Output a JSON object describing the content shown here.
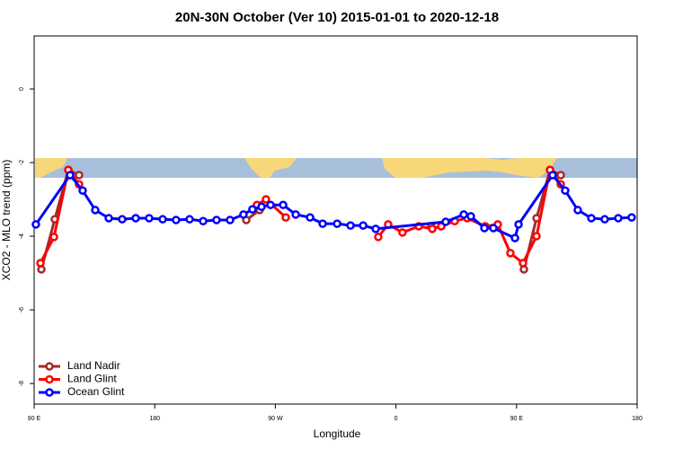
{
  "chart_data": {
    "type": "line",
    "title": "20N-30N October (Ver 10)   2015-01-01 to 2020-12-18",
    "x_label": "Longitude",
    "y_label": "XCO2 - MLO trend (ppm)",
    "xlim": [
      90,
      540
    ],
    "xticks": [
      {
        "value": 90,
        "label": "90 E"
      },
      180,
      {
        "value": 270,
        "label": "90 W"
      },
      {
        "value": 360,
        "label": "0"
      },
      {
        "value": 450,
        "label": "90 E"
      },
      {
        "value": 540,
        "label": "180"
      }
    ],
    "ylim": [
      -8.56,
      1.44
    ],
    "yticks": [
      0,
      -2,
      -4,
      -6,
      -8
    ],
    "legend": "bottom-left",
    "series": [
      {
        "name": "Land Nadir",
        "color": "#a52a2a",
        "x": [
          95.4,
          105.4,
          115.5,
          123.5,
          null,
          248.3,
          258.3,
          null,
          386.4,
          null,
          455.5,
          464.9,
          475,
          483
        ],
        "values": [
          -4.9,
          -3.54,
          -2.2,
          -2.34,
          null,
          -3.56,
          -3.29,
          null,
          -3.73,
          null,
          -4.9,
          -3.51,
          -2.2,
          -2.34
        ]
      },
      {
        "name": "Land Glint",
        "color": "#ff0000",
        "x": [
          94.7,
          104.8,
          115.5,
          123.5,
          null,
          256.3,
          263.0,
          277.8,
          null,
          346.8,
          354.2,
          364.9,
          377,
          387.1,
          393.8,
          403.8,
          413.2,
          426.6,
          436,
          445.4,
          454.8,
          464.9,
          475,
          483
        ],
        "values": [
          -4.73,
          -4.02,
          -2.2,
          -2.59,
          null,
          -3.15,
          -3.0,
          -3.49,
          null,
          -4.02,
          -3.68,
          -3.9,
          -3.73,
          -3.8,
          -3.73,
          -3.59,
          -3.51,
          -3.73,
          -3.68,
          -4.46,
          -4.73,
          -4.0,
          -2.2,
          -2.59
        ]
      },
      {
        "name": "Ocean Glint",
        "color": "#0000ff",
        "x": [
          91.3,
          116.8,
          126.2,
          135.6,
          145.7,
          155.7,
          165.8,
          175.8,
          185.9,
          195.9,
          206,
          216.1,
          226.1,
          236.2,
          246.2,
          252.9,
          259.7,
          266.4,
          275.8,
          285.2,
          295.9,
          305.3,
          316.1,
          326.1,
          335.5,
          344.9,
          397.1,
          410.6,
          415.9,
          426,
          432.7,
          448.8,
          451.5,
          476.9,
          486.3,
          495.7,
          505.8,
          515.8,
          525.9,
          535.9
        ],
        "values": [
          -3.68,
          -2.34,
          -2.76,
          -3.29,
          -3.51,
          -3.54,
          -3.51,
          -3.51,
          -3.54,
          -3.56,
          -3.54,
          -3.59,
          -3.56,
          -3.56,
          -3.41,
          -3.27,
          -3.2,
          -3.15,
          -3.15,
          -3.41,
          -3.49,
          -3.66,
          -3.66,
          -3.71,
          -3.71,
          -3.8,
          -3.61,
          -3.41,
          -3.46,
          -3.78,
          -3.78,
          -4.05,
          -3.68,
          -2.34,
          -2.76,
          -3.29,
          -3.51,
          -3.54,
          -3.51,
          -3.49
        ]
      }
    ]
  }
}
